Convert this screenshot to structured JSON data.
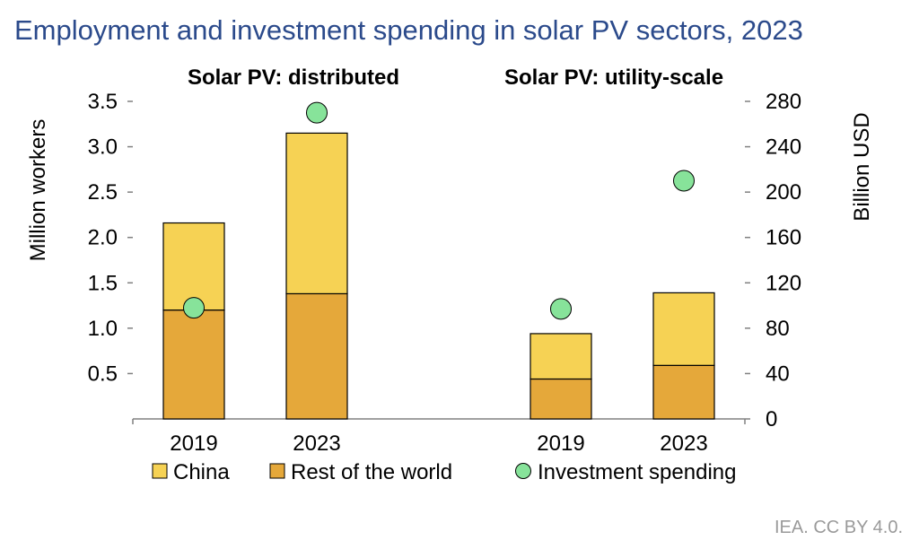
{
  "chart_data": {
    "type": "bar",
    "title": "Employment and investment spending in solar PV sectors, 2023",
    "ylabel": "Million workers",
    "y2label": "Billion USD",
    "ylim": [
      0,
      3.5
    ],
    "y2lim": [
      0,
      280
    ],
    "yticks": [
      "0.5",
      "1.0",
      "1.5",
      "2.0",
      "2.5",
      "3.0",
      "3.5"
    ],
    "y2ticks": [
      "0",
      "40",
      "80",
      "120",
      "160",
      "200",
      "240",
      "280"
    ],
    "panels": [
      {
        "title": "Solar PV: distributed",
        "categories": [
          "2019",
          "2023"
        ]
      },
      {
        "title": "Solar PV: utility-scale",
        "categories": [
          "2019",
          "2023"
        ]
      }
    ],
    "series": [
      {
        "name": "China",
        "type": "stacked-bar",
        "axis": "left",
        "color": "#f6d254",
        "values": [
          0.96,
          1.77,
          0.5,
          0.8
        ]
      },
      {
        "name": "Rest of the world",
        "type": "stacked-bar",
        "axis": "left",
        "color": "#e5a83a",
        "values": [
          1.2,
          1.38,
          0.44,
          0.59
        ]
      },
      {
        "name": "Investment spending",
        "type": "scatter",
        "axis": "right",
        "color": "#87e39a",
        "values": [
          98,
          270,
          97,
          210
        ]
      }
    ],
    "legend_position": "bottom",
    "grid": false
  },
  "source": "IEA. CC BY 4.0."
}
